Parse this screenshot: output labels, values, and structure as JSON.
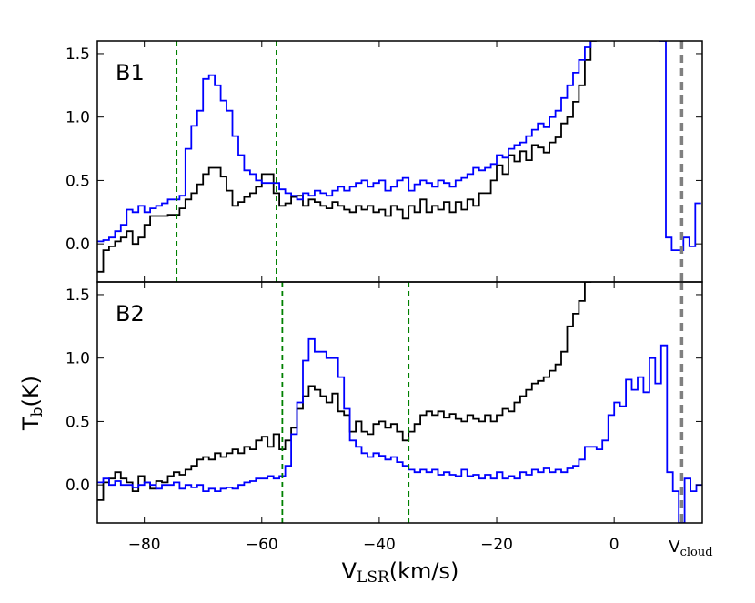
{
  "chart_data": {
    "type": "line",
    "step": true,
    "xlabel": "V",
    "xlabel_sub": "LSR",
    "xlabel_unit": "(km/s)",
    "ylabel": "T",
    "ylabel_sub": "b",
    "ylabel_unit": "(K)",
    "xlim": [
      -88,
      15
    ],
    "xticks": [
      -80,
      -60,
      -40,
      -20,
      0
    ],
    "xtick_labels": [
      "−80",
      "−60",
      "−40",
      "−20",
      "0"
    ],
    "vcloud": {
      "x": 11.5,
      "label": "V",
      "label_sub": "cloud",
      "color": "#808080"
    },
    "colors": {
      "black": "#000000",
      "blue": "#0000ff",
      "green": "#008000"
    },
    "panels": [
      {
        "label": "B1",
        "ylim": [
          -0.3,
          1.6
        ],
        "yticks": [
          0.0,
          0.5,
          1.0,
          1.5
        ],
        "ytick_labels": [
          "0.0",
          "0.5",
          "1.0",
          "1.5"
        ],
        "vlines": [
          -74.5,
          -57.5
        ],
        "series": [
          {
            "color": "black",
            "x": [
              -88,
              -87,
              -86,
              -85,
              -84,
              -83,
              -82,
              -81,
              -80,
              -79,
              -78,
              -77,
              -76,
              -75,
              -74,
              -73,
              -72,
              -71,
              -70,
              -69,
              -68,
              -67,
              -66,
              -65,
              -64,
              -63,
              -62,
              -61,
              -60,
              -59,
              -58,
              -57,
              -56,
              -55,
              -54,
              -53,
              -52,
              -51,
              -50,
              -49,
              -48,
              -47,
              -46,
              -45,
              -44,
              -43,
              -42,
              -41,
              -40,
              -39,
              -38,
              -37,
              -36,
              -35,
              -34,
              -33,
              -32,
              -31,
              -30,
              -29,
              -28,
              -27,
              -26,
              -25,
              -24,
              -23,
              -22,
              -21,
              -20,
              -19,
              -18,
              -17,
              -16,
              -15,
              -14,
              -13,
              -12,
              -11,
              -10,
              -9,
              -8,
              -7,
              -6,
              -5,
              -4
            ],
            "y": [
              -0.22,
              -0.05,
              -0.02,
              0.02,
              0.05,
              0.1,
              0.0,
              0.05,
              0.15,
              0.22,
              0.22,
              0.22,
              0.23,
              0.23,
              0.28,
              0.35,
              0.4,
              0.47,
              0.55,
              0.6,
              0.6,
              0.53,
              0.42,
              0.3,
              0.33,
              0.37,
              0.4,
              0.45,
              0.55,
              0.55,
              0.4,
              0.3,
              0.32,
              0.37,
              0.38,
              0.3,
              0.35,
              0.33,
              0.3,
              0.28,
              0.33,
              0.3,
              0.27,
              0.25,
              0.3,
              0.27,
              0.3,
              0.25,
              0.27,
              0.22,
              0.3,
              0.27,
              0.2,
              0.3,
              0.25,
              0.35,
              0.25,
              0.3,
              0.27,
              0.33,
              0.25,
              0.33,
              0.27,
              0.35,
              0.3,
              0.4,
              0.4,
              0.5,
              0.62,
              0.55,
              0.7,
              0.65,
              0.73,
              0.66,
              0.78,
              0.76,
              0.72,
              0.8,
              0.84,
              0.95,
              1.0,
              1.12,
              1.25,
              1.45,
              1.6
            ]
          },
          {
            "color": "blue",
            "x": [
              -88,
              -87,
              -86,
              -85,
              -84,
              -83,
              -82,
              -81,
              -80,
              -79,
              -78,
              -77,
              -76,
              -75,
              -74,
              -73,
              -72,
              -71,
              -70,
              -69,
              -68,
              -67,
              -66,
              -65,
              -64,
              -63,
              -62,
              -61,
              -60,
              -59,
              -58,
              -57,
              -56,
              -55,
              -54,
              -53,
              -52,
              -51,
              -50,
              -49,
              -48,
              -47,
              -46,
              -45,
              -44,
              -43,
              -42,
              -41,
              -40,
              -39,
              -38,
              -37,
              -36,
              -35,
              -34,
              -33,
              -32,
              -31,
              -30,
              -29,
              -28,
              -27,
              -26,
              -25,
              -24,
              -23,
              -22,
              -21,
              -20,
              -19,
              -18,
              -17,
              -16,
              -15,
              -14,
              -13,
              -12,
              -11,
              -10,
              -9,
              -8,
              -7,
              -6,
              -5,
              -4,
              7.8,
              8.8,
              9.8,
              10.8,
              11.8,
              12.8,
              13.8
            ],
            "y": [
              0.02,
              0.03,
              0.05,
              0.1,
              0.15,
              0.27,
              0.25,
              0.3,
              0.25,
              0.28,
              0.3,
              0.32,
              0.35,
              0.35,
              0.38,
              0.75,
              0.93,
              1.05,
              1.3,
              1.33,
              1.25,
              1.13,
              1.05,
              0.85,
              0.7,
              0.58,
              0.55,
              0.5,
              0.48,
              0.48,
              0.48,
              0.43,
              0.4,
              0.38,
              0.35,
              0.4,
              0.38,
              0.42,
              0.4,
              0.38,
              0.42,
              0.45,
              0.42,
              0.45,
              0.48,
              0.5,
              0.45,
              0.48,
              0.5,
              0.42,
              0.45,
              0.5,
              0.52,
              0.42,
              0.47,
              0.5,
              0.48,
              0.45,
              0.5,
              0.48,
              0.45,
              0.5,
              0.52,
              0.55,
              0.6,
              0.58,
              0.6,
              0.63,
              0.7,
              0.68,
              0.75,
              0.78,
              0.8,
              0.85,
              0.9,
              0.95,
              0.92,
              1.0,
              1.05,
              1.15,
              1.25,
              1.35,
              1.45,
              1.55,
              1.62,
              1.6,
              0.05,
              -0.05,
              -0.05,
              0.05,
              -0.02,
              0.32
            ]
          }
        ]
      },
      {
        "label": "B2",
        "ylim": [
          -0.3,
          1.6
        ],
        "yticks": [
          0.0,
          0.5,
          1.0,
          1.5
        ],
        "ytick_labels": [
          "0.0",
          "0.5",
          "1.0",
          "1.5"
        ],
        "vlines": [
          -56.5,
          -35
        ],
        "series": [
          {
            "color": "black",
            "x": [
              -88,
              -87,
              -86,
              -85,
              -84,
              -83,
              -82,
              -81,
              -80,
              -79,
              -78,
              -77,
              -76,
              -75,
              -74,
              -73,
              -72,
              -71,
              -70,
              -69,
              -68,
              -67,
              -66,
              -65,
              -64,
              -63,
              -62,
              -61,
              -60,
              -59,
              -58,
              -57,
              -56,
              -55,
              -54,
              -53,
              -52,
              -51,
              -50,
              -49,
              -48,
              -47,
              -46,
              -45,
              -44,
              -43,
              -42,
              -41,
              -40,
              -39,
              -38,
              -37,
              -36,
              -35,
              -34,
              -33,
              -32,
              -31,
              -30,
              -29,
              -28,
              -27,
              -26,
              -25,
              -24,
              -23,
              -22,
              -21,
              -20,
              -19,
              -18,
              -17,
              -16,
              -15,
              -14,
              -13,
              -12,
              -11,
              -10,
              -9,
              -8,
              -7,
              -6,
              -5,
              -4
            ],
            "y": [
              -0.12,
              0.02,
              0.05,
              0.1,
              0.05,
              0.02,
              -0.05,
              0.07,
              0.02,
              -0.03,
              0.03,
              0.02,
              0.07,
              0.1,
              0.08,
              0.12,
              0.15,
              0.2,
              0.22,
              0.2,
              0.25,
              0.22,
              0.25,
              0.28,
              0.25,
              0.3,
              0.28,
              0.35,
              0.38,
              0.3,
              0.4,
              0.28,
              0.35,
              0.45,
              0.6,
              0.7,
              0.78,
              0.75,
              0.7,
              0.65,
              0.72,
              0.58,
              0.55,
              0.42,
              0.5,
              0.42,
              0.4,
              0.48,
              0.5,
              0.45,
              0.48,
              0.42,
              0.35,
              0.42,
              0.48,
              0.55,
              0.58,
              0.55,
              0.58,
              0.53,
              0.56,
              0.52,
              0.5,
              0.55,
              0.52,
              0.5,
              0.55,
              0.5,
              0.55,
              0.6,
              0.58,
              0.65,
              0.7,
              0.75,
              0.8,
              0.82,
              0.85,
              0.9,
              0.95,
              1.05,
              1.25,
              1.35,
              1.45,
              1.6,
              1.65
            ]
          },
          {
            "color": "blue",
            "x": [
              -88,
              -87,
              -86,
              -85,
              -84,
              -83,
              -82,
              -81,
              -80,
              -79,
              -78,
              -77,
              -76,
              -75,
              -74,
              -73,
              -72,
              -71,
              -70,
              -69,
              -68,
              -67,
              -66,
              -65,
              -64,
              -63,
              -62,
              -61,
              -60,
              -59,
              -58,
              -57,
              -56,
              -55,
              -54,
              -53,
              -52,
              -51,
              -50,
              -49,
              -48,
              -47,
              -46,
              -45,
              -44,
              -43,
              -42,
              -41,
              -40,
              -39,
              -38,
              -37,
              -36,
              -35,
              -34,
              -33,
              -32,
              -31,
              -30,
              -29,
              -28,
              -27,
              -26,
              -25,
              -24,
              -23,
              -22,
              -21,
              -20,
              -19,
              -18,
              -17,
              -16,
              -15,
              -14,
              -13,
              -12,
              -11,
              -10,
              -9,
              -8,
              -7,
              -6,
              -5,
              -4,
              -3,
              -2,
              -1,
              0,
              1,
              2,
              3,
              4,
              5,
              6,
              7,
              8,
              9,
              10,
              11,
              12,
              13,
              14
            ],
            "y": [
              0.02,
              0.05,
              0.0,
              0.03,
              0.0,
              0.0,
              -0.02,
              0.0,
              0.02,
              0.0,
              -0.03,
              0.0,
              0.0,
              0.02,
              -0.03,
              0.0,
              -0.02,
              0.0,
              -0.05,
              -0.03,
              -0.05,
              -0.03,
              -0.02,
              -0.03,
              0.0,
              0.02,
              0.03,
              0.05,
              0.05,
              0.07,
              0.05,
              0.07,
              0.15,
              0.4,
              0.65,
              0.98,
              1.15,
              1.05,
              1.05,
              1.0,
              1.0,
              0.85,
              0.6,
              0.35,
              0.3,
              0.25,
              0.22,
              0.25,
              0.23,
              0.2,
              0.22,
              0.18,
              0.15,
              0.12,
              0.1,
              0.12,
              0.1,
              0.12,
              0.08,
              0.1,
              0.08,
              0.07,
              0.12,
              0.07,
              0.08,
              0.05,
              0.08,
              0.05,
              0.1,
              0.05,
              0.07,
              0.05,
              0.1,
              0.08,
              0.12,
              0.1,
              0.13,
              0.1,
              0.12,
              0.1,
              0.13,
              0.15,
              0.2,
              0.3,
              0.3,
              0.28,
              0.35,
              0.55,
              0.65,
              0.62,
              0.83,
              0.75,
              0.85,
              0.73,
              1.0,
              0.8,
              1.1,
              0.1,
              -0.05,
              -0.3,
              0.05,
              -0.05,
              0.0
            ]
          }
        ]
      }
    ]
  }
}
